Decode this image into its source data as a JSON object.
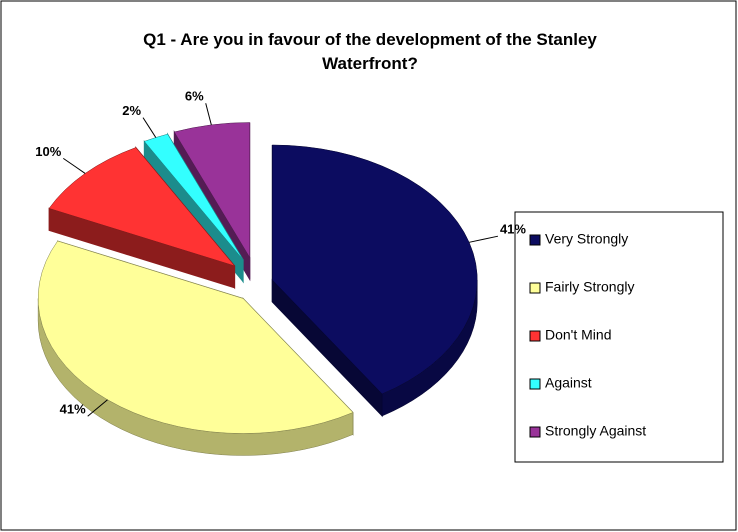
{
  "chart_data": {
    "type": "pie",
    "title": "Q1 - Are you in favour of the development of the Stanley Waterfront?",
    "categories": [
      "Very Strongly",
      "Fairly Strongly",
      "Don't Mind",
      "Against",
      "Strongly Against"
    ],
    "values": [
      41,
      41,
      10,
      2,
      6
    ],
    "value_labels": [
      "41%",
      "41%",
      "10%",
      "2%",
      "6%"
    ],
    "colors": [
      "#0c0c60",
      "#ffff99",
      "#ff3333",
      "#33ffff",
      "#993399"
    ],
    "legend": "right"
  }
}
